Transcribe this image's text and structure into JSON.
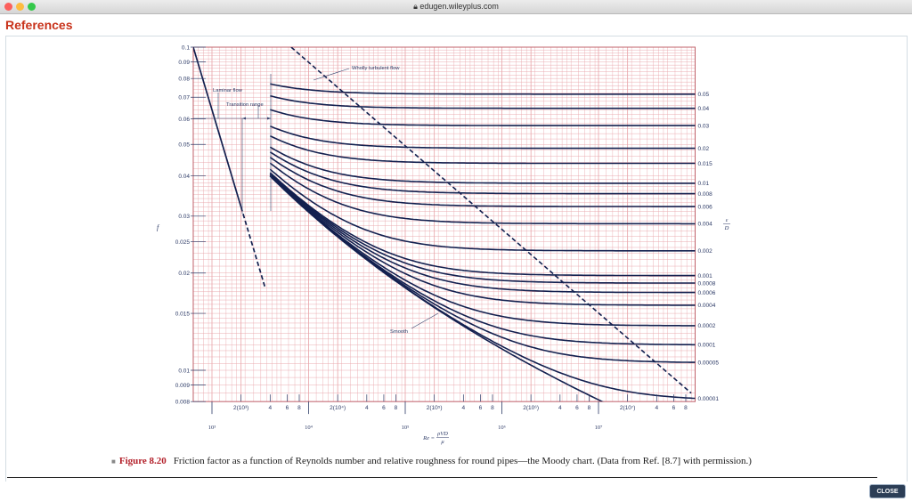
{
  "window": {
    "url": "edugen.wileyplus.com",
    "lock_icon": "lock-icon",
    "traffic_lights": {
      "close": "#fc605c",
      "minimize": "#fdbc40",
      "zoom": "#34c84a"
    }
  },
  "header": {
    "title": "References",
    "title_color": "#c8321a"
  },
  "caption": {
    "marker": "■",
    "figure_label": "Figure 8.20",
    "text": "Friction factor as a function of Reynolds number and relative roughness for round pipes—the Moody chart. (Data from Ref. [8.7] with permission.)"
  },
  "close_button": {
    "label": "CLOSE"
  },
  "chart_data": {
    "type": "line",
    "title": "",
    "xlabel": "Re = ρVD/μ",
    "xlabel_parts": {
      "lhs": "Re =",
      "num": "ρVD",
      "den": "μ"
    },
    "ylabel": "f",
    "right_label": {
      "num": "ε",
      "den": "D"
    },
    "x_scale": "log",
    "y_scale": "log",
    "xlim": [
      640,
      100000000
    ],
    "ylim": [
      0.008,
      0.1
    ],
    "grid": true,
    "grid_color": "#e8a3a8",
    "border_color": "#c0606a",
    "line_color": "#13204f",
    "yticks": [
      {
        "v": 0.1,
        "label": "0.1"
      },
      {
        "v": 0.09,
        "label": "0.09"
      },
      {
        "v": 0.08,
        "label": "0.08"
      },
      {
        "v": 0.07,
        "label": "0.07"
      },
      {
        "v": 0.06,
        "label": "0.06"
      },
      {
        "v": 0.05,
        "label": "0.05"
      },
      {
        "v": 0.04,
        "label": "0.04"
      },
      {
        "v": 0.03,
        "label": "0.03"
      },
      {
        "v": 0.025,
        "label": "0.025"
      },
      {
        "v": 0.02,
        "label": "0.02"
      },
      {
        "v": 0.015,
        "label": "0.015"
      },
      {
        "v": 0.01,
        "label": "0.01"
      },
      {
        "v": 0.009,
        "label": "0.009"
      },
      {
        "v": 0.008,
        "label": "0.008"
      }
    ],
    "xticks_minor": [
      {
        "v": 2000,
        "label": "2(10³)"
      },
      {
        "v": 4000,
        "label": "4"
      },
      {
        "v": 6000,
        "label": "6"
      },
      {
        "v": 8000,
        "label": "8"
      },
      {
        "v": 20000,
        "label": "2(10⁴)"
      },
      {
        "v": 40000,
        "label": "4"
      },
      {
        "v": 60000,
        "label": "6"
      },
      {
        "v": 80000,
        "label": "8"
      },
      {
        "v": 200000,
        "label": "2(10⁵)"
      },
      {
        "v": 400000,
        "label": "4"
      },
      {
        "v": 600000,
        "label": "6"
      },
      {
        "v": 800000,
        "label": "8"
      },
      {
        "v": 2000000,
        "label": "2(10⁶)"
      },
      {
        "v": 4000000,
        "label": "4"
      },
      {
        "v": 6000000,
        "label": "6"
      },
      {
        "v": 8000000,
        "label": "8"
      },
      {
        "v": 20000000,
        "label": "2(10⁷)"
      },
      {
        "v": 40000000,
        "label": "4"
      },
      {
        "v": 60000000,
        "label": "6"
      },
      {
        "v": 80000000,
        "label": "8"
      }
    ],
    "xticks_major": [
      {
        "v": 1000,
        "label": "10³"
      },
      {
        "v": 10000,
        "label": "10⁴"
      },
      {
        "v": 100000,
        "label": "10⁵"
      },
      {
        "v": 1000000,
        "label": "10⁶"
      },
      {
        "v": 10000000,
        "label": "10⁷"
      }
    ],
    "laminar": {
      "formula": "f = 64/Re",
      "solid": [
        [
          640,
          0.1
        ],
        [
          2000,
          0.032
        ]
      ],
      "dashed": [
        [
          2000,
          0.032
        ],
        [
          3570,
          0.0179
        ]
      ]
    },
    "wholly_turbulent_boundary": {
      "style": "dashed",
      "points": [
        [
          6600,
          0.1
        ],
        [
          91000000,
          0.0085
        ]
      ]
    },
    "turbulent_model": "Colebrook",
    "turbulent_re_range": [
      4000,
      100000000
    ],
    "series": [
      {
        "label": "0.05",
        "rel_roughness": 0.05
      },
      {
        "label": "0.04",
        "rel_roughness": 0.04
      },
      {
        "label": "0.03",
        "rel_roughness": 0.03
      },
      {
        "label": "0.02",
        "rel_roughness": 0.02
      },
      {
        "label": "0.015",
        "rel_roughness": 0.015
      },
      {
        "label": "0.01",
        "rel_roughness": 0.01
      },
      {
        "label": "0.008",
        "rel_roughness": 0.008
      },
      {
        "label": "0.006",
        "rel_roughness": 0.006
      },
      {
        "label": "0.004",
        "rel_roughness": 0.004
      },
      {
        "label": "0.002",
        "rel_roughness": 0.002
      },
      {
        "label": "0.001",
        "rel_roughness": 0.001
      },
      {
        "label": "0.0008",
        "rel_roughness": 0.0008
      },
      {
        "label": "0.0006",
        "rel_roughness": 0.0006
      },
      {
        "label": "0.0004",
        "rel_roughness": 0.0004
      },
      {
        "label": "0.0002",
        "rel_roughness": 0.0002
      },
      {
        "label": "0.0001",
        "rel_roughness": 0.0001
      },
      {
        "label": "0.00005",
        "rel_roughness": 5e-05
      },
      {
        "label": "0.00001",
        "rel_roughness": 1e-05
      },
      {
        "label": "",
        "rel_roughness": 0
      }
    ],
    "annotations": {
      "laminar": "Laminar flow",
      "transition": "Transition range",
      "turbulent": "Wholly turbulent flow",
      "smooth": "Smooth"
    }
  }
}
